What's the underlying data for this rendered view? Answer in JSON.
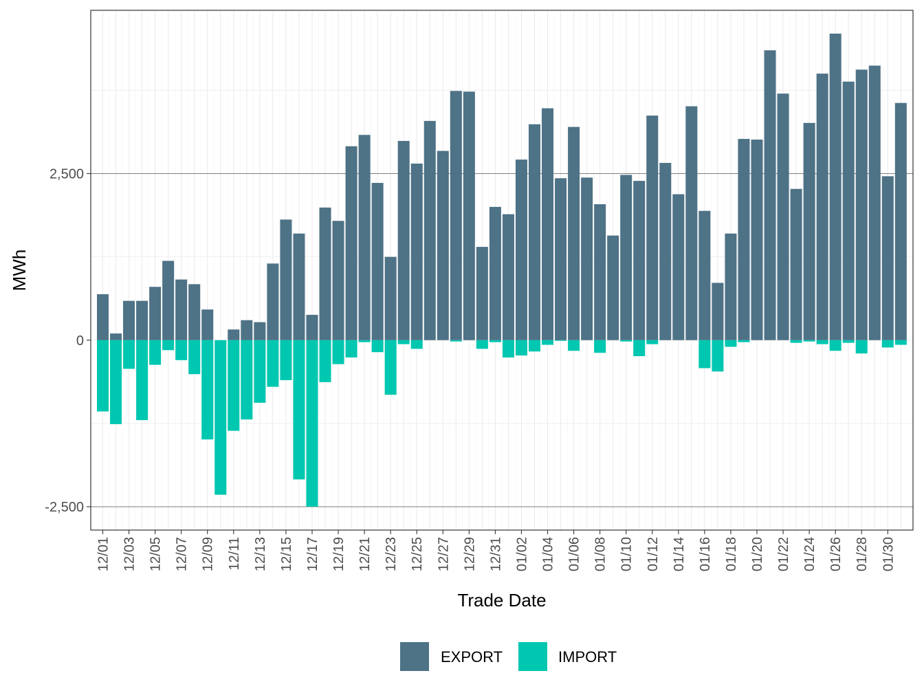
{
  "chart_data": {
    "type": "bar",
    "stacked": true,
    "xlabel": "Trade Date",
    "ylabel": "MWh",
    "ylim": [
      -2850,
      4950
    ],
    "yticks": [
      -2500,
      0,
      2500
    ],
    "ytick_labels": [
      "-2,500",
      "0",
      "2,500"
    ],
    "grid": true,
    "legend_position": "bottom",
    "categories": [
      "12/01",
      "12/02",
      "12/03",
      "12/04",
      "12/05",
      "12/06",
      "12/07",
      "12/08",
      "12/09",
      "12/10",
      "12/11",
      "12/12",
      "12/13",
      "12/14",
      "12/15",
      "12/16",
      "12/17",
      "12/18",
      "12/19",
      "12/20",
      "12/21",
      "12/22",
      "12/23",
      "12/24",
      "12/25",
      "12/26",
      "12/27",
      "12/28",
      "12/29",
      "12/30",
      "12/31",
      "01/01",
      "01/02",
      "01/03",
      "01/04",
      "01/05",
      "01/06",
      "01/07",
      "01/08",
      "01/09",
      "01/10",
      "01/11",
      "01/12",
      "01/13",
      "01/14",
      "01/15",
      "01/16",
      "01/17",
      "01/18",
      "01/19",
      "01/20",
      "01/21",
      "01/22",
      "01/23",
      "01/24",
      "01/25",
      "01/26",
      "01/27",
      "01/28",
      "01/29",
      "01/30",
      "01/31"
    ],
    "tick_labels": [
      "12/01",
      "12/03",
      "12/05",
      "12/07",
      "12/09",
      "12/11",
      "12/13",
      "12/15",
      "12/17",
      "12/19",
      "12/21",
      "12/23",
      "12/25",
      "12/27",
      "12/29",
      "12/31",
      "01/02",
      "01/04",
      "01/06",
      "01/08",
      "01/10",
      "01/12",
      "01/14",
      "01/16",
      "01/18",
      "01/20",
      "01/22",
      "01/24",
      "01/26",
      "01/28",
      "01/30"
    ],
    "series": [
      {
        "name": "EXPORT",
        "color": "#4e7286",
        "values": [
          690,
          100,
          590,
          590,
          800,
          1190,
          910,
          840,
          460,
          0,
          160,
          300,
          270,
          1150,
          1810,
          1600,
          380,
          1990,
          1790,
          2910,
          3080,
          2360,
          1250,
          2990,
          2650,
          3290,
          2840,
          3740,
          3730,
          1400,
          2000,
          1890,
          2710,
          3240,
          3480,
          2430,
          3200,
          2440,
          2040,
          1570,
          2480,
          2390,
          3370,
          2660,
          2190,
          3510,
          1940,
          860,
          1600,
          3020,
          3010,
          4350,
          3700,
          2270,
          3260,
          4000,
          4600,
          3880,
          4060,
          4120,
          2460,
          3560
        ]
      },
      {
        "name": "IMPORT",
        "color": "#00c7b0",
        "values": [
          -1070,
          -1260,
          -430,
          -1200,
          -370,
          -150,
          -300,
          -510,
          -1490,
          -2320,
          -1360,
          -1190,
          -940,
          -700,
          -600,
          -2090,
          -2500,
          -630,
          -360,
          -260,
          -30,
          -180,
          -820,
          -60,
          -130,
          0,
          0,
          -20,
          0,
          -130,
          -30,
          -260,
          -230,
          -170,
          -70,
          -10,
          -160,
          0,
          -190,
          0,
          -20,
          -240,
          -60,
          0,
          0,
          0,
          -420,
          -470,
          -100,
          -30,
          0,
          0,
          0,
          -40,
          -20,
          -60,
          -160,
          -40,
          -200,
          0,
          -110,
          -70
        ]
      }
    ]
  }
}
